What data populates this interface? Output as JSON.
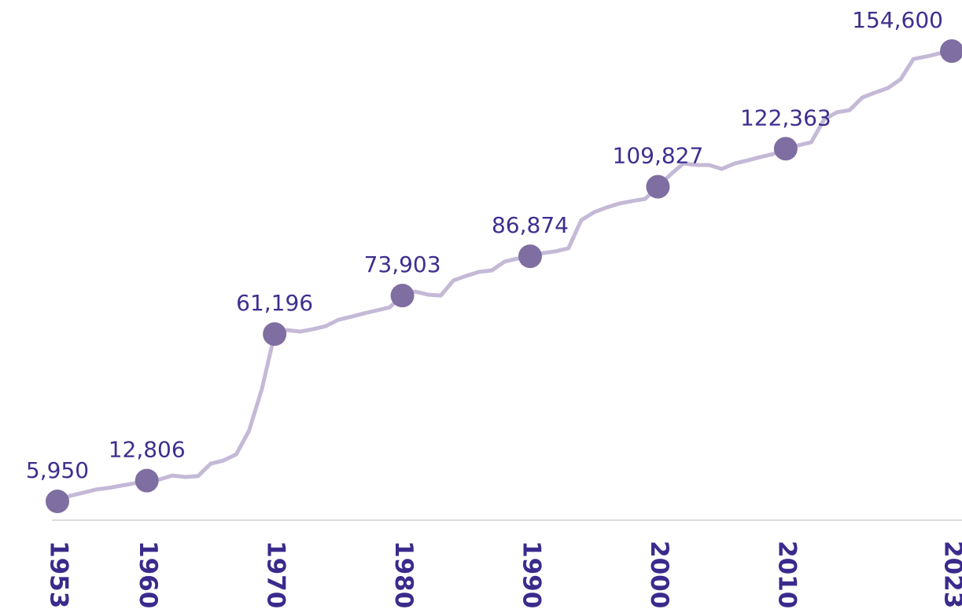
{
  "chart_data": {
    "type": "line",
    "x": [
      1953,
      1954,
      1955,
      1956,
      1957,
      1958,
      1959,
      1960,
      1961,
      1962,
      1963,
      1964,
      1965,
      1966,
      1967,
      1968,
      1969,
      1970,
      1971,
      1972,
      1973,
      1974,
      1975,
      1976,
      1977,
      1978,
      1979,
      1980,
      1981,
      1982,
      1983,
      1984,
      1985,
      1986,
      1987,
      1988,
      1989,
      1990,
      1991,
      1992,
      1993,
      1994,
      1995,
      1996,
      1997,
      1998,
      1999,
      2000,
      2001,
      2002,
      2003,
      2004,
      2005,
      2006,
      2007,
      2008,
      2009,
      2010,
      2011,
      2012,
      2013,
      2014,
      2015,
      2016,
      2017,
      2018,
      2019,
      2020,
      2021,
      2022,
      2023
    ],
    "series": [
      {
        "color": "#c4b9d6",
        "marker_color": "#7f6ea1",
        "values": [
          5950,
          7800,
          8800,
          9860,
          10400,
          11150,
          11900,
          12806,
          13200,
          14500,
          14000,
          14300,
          18400,
          19450,
          21500,
          29300,
          43000,
          61196,
          62500,
          62000,
          62800,
          63800,
          65900,
          66900,
          68000,
          69000,
          70000,
          73903,
          75200,
          74200,
          73900,
          78900,
          80400,
          81700,
          82200,
          85100,
          86100,
          86874,
          87900,
          88500,
          89500,
          98800,
          101400,
          103000,
          104300,
          105100,
          105800,
          109827,
          113900,
          117500,
          117000,
          117000,
          115700,
          117500,
          118500,
          119600,
          120600,
          122363,
          123500,
          124500,
          132000,
          134400,
          135100,
          139300,
          140900,
          142400,
          145300,
          152000,
          152800,
          153800,
          154600
        ],
        "value_labels": [
          "5,950",
          null,
          null,
          null,
          null,
          null,
          null,
          "12,806",
          null,
          null,
          null,
          null,
          null,
          null,
          null,
          null,
          null,
          "61,196",
          null,
          null,
          null,
          null,
          null,
          null,
          null,
          null,
          null,
          "73,903",
          null,
          null,
          null,
          null,
          null,
          null,
          null,
          null,
          null,
          "86,874",
          null,
          null,
          null,
          null,
          null,
          null,
          null,
          null,
          null,
          "109,827",
          null,
          null,
          null,
          null,
          null,
          null,
          null,
          null,
          null,
          "122,363",
          null,
          null,
          null,
          null,
          null,
          null,
          null,
          null,
          null,
          null,
          null,
          null,
          "154,600"
        ]
      }
    ],
    "xlim": [
      1953,
      2023
    ],
    "xticks": [
      1953,
      1960,
      1970,
      1980,
      1990,
      2000,
      2010,
      2023
    ],
    "ylim": [
      0,
      154600
    ]
  }
}
